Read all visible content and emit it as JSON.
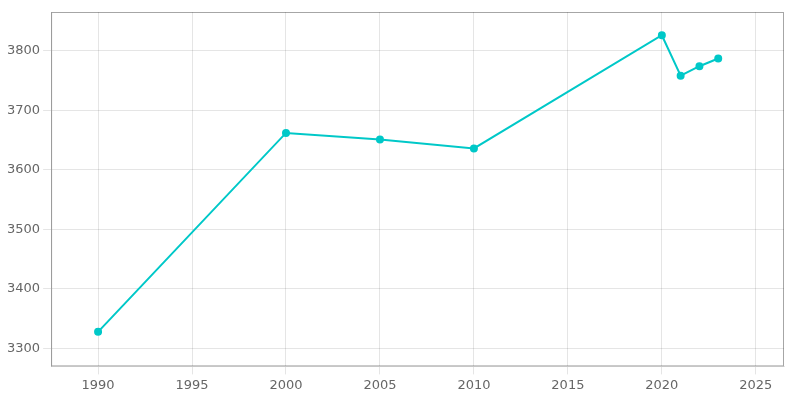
{
  "chart_data": {
    "type": "line",
    "x": [
      1990,
      2000,
      2005,
      2010,
      2020,
      2021,
      2022,
      2023
    ],
    "values": [
      3328,
      3662,
      3651,
      3636,
      3826,
      3758,
      3774,
      3787
    ],
    "color": "#00c8c8",
    "marker": "o",
    "xlim": [
      1987.5,
      2026.5
    ],
    "ylim": [
      3270,
      3865
    ],
    "xticks": [
      1990,
      1995,
      2000,
      2005,
      2010,
      2015,
      2020,
      2025
    ],
    "yticks": [
      3300,
      3400,
      3500,
      3600,
      3700,
      3800
    ],
    "grid": true
  }
}
